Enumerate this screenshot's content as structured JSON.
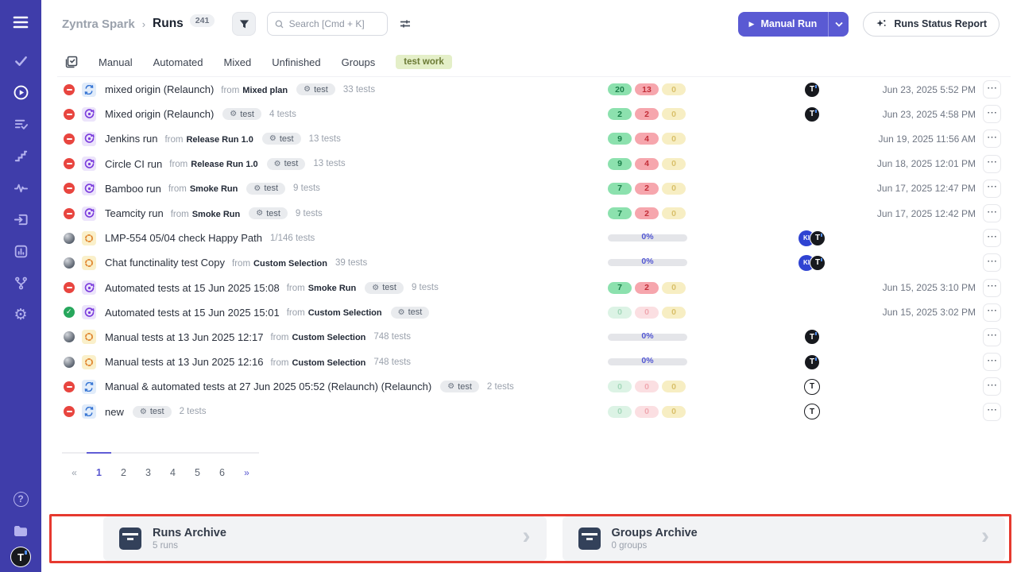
{
  "colors": {
    "sidebar_bg": "#3f3daa",
    "accent": "#5a5ad3",
    "passed_pill": "#8ce1ae",
    "failed_pill": "#f6a6ad",
    "pending_pill": "#f7eec3",
    "tag_bg": "#e4efc8",
    "annotation_red": "#e6392f"
  },
  "sidebar": {
    "top_icons": [
      "menu-icon",
      "check-icon",
      "play-circle-icon",
      "list-check-icon",
      "steps-icon",
      "pulse-icon",
      "box-arrow-icon",
      "bar-chart-icon",
      "branch-icon",
      "gear-icon"
    ],
    "active_icon": "play-circle-icon",
    "bottom_icons": [
      "help-icon",
      "folder-icon"
    ],
    "logo_letter": "T"
  },
  "header": {
    "breadcrumb_parent": "Zyntra Spark",
    "breadcrumb_sep": "›",
    "breadcrumb_current": "Runs",
    "count": "241",
    "search_placeholder": "Search [Cmd + K]",
    "manual_run_label": "Manual Run",
    "play_glyph": "▶",
    "report_label": "Runs Status Report"
  },
  "tabs": {
    "items": [
      "Manual",
      "Automated",
      "Mixed",
      "Unfinished",
      "Groups"
    ],
    "tag": "test work"
  },
  "strings": {
    "from": "from",
    "test_badge": "test",
    "gear": "⚙",
    "dots": "⋯"
  },
  "runs": [
    {
      "state": "stopped",
      "type": "mixed",
      "title": "mixed origin (Relaunch)",
      "source": "Mixed plan",
      "badge": "test",
      "tests": "33 tests",
      "stats": {
        "passed": "20",
        "failed": "13",
        "skipped": "0",
        "solid": true
      },
      "avatars": [
        {
          "label": "T",
          "style": "dark"
        }
      ],
      "date": "Jun 23, 2025 5:52 PM"
    },
    {
      "state": "stopped",
      "type": "auto",
      "title": "Mixed origin (Relaunch)",
      "source": "",
      "badge": "test",
      "tests": "4 tests",
      "stats": {
        "passed": "2",
        "failed": "2",
        "skipped": "0",
        "solid": true
      },
      "avatars": [
        {
          "label": "T",
          "style": "dark"
        }
      ],
      "date": "Jun 23, 2025 4:58 PM"
    },
    {
      "state": "stopped",
      "type": "auto",
      "title": "Jenkins run",
      "source": "Release Run 1.0",
      "badge": "test",
      "tests": "13 tests",
      "stats": {
        "passed": "9",
        "failed": "4",
        "skipped": "0",
        "solid": true
      },
      "avatars": [],
      "date": "Jun 19, 2025 11:56 AM"
    },
    {
      "state": "stopped",
      "type": "auto",
      "title": "Circle CI run",
      "source": "Release Run 1.0",
      "badge": "test",
      "tests": "13 tests",
      "stats": {
        "passed": "9",
        "failed": "4",
        "skipped": "0",
        "solid": true
      },
      "avatars": [],
      "date": "Jun 18, 2025 12:01 PM"
    },
    {
      "state": "stopped",
      "type": "auto",
      "title": "Bamboo run",
      "source": "Smoke Run",
      "badge": "test",
      "tests": "9 tests",
      "stats": {
        "passed": "7",
        "failed": "2",
        "skipped": "0",
        "solid": true
      },
      "avatars": [],
      "date": "Jun 17, 2025 12:47 PM"
    },
    {
      "state": "stopped",
      "type": "auto",
      "title": "Teamcity run",
      "source": "Smoke Run",
      "badge": "test",
      "tests": "9 tests",
      "stats": {
        "passed": "7",
        "failed": "2",
        "skipped": "0",
        "solid": true
      },
      "avatars": [],
      "date": "Jun 17, 2025 12:42 PM"
    },
    {
      "state": "progress",
      "type": "running",
      "title": "LMP-554 05/04 check Happy Path",
      "source": "",
      "badge": "",
      "tests": "1/146 tests",
      "stats": {
        "progress": "0%"
      },
      "avatars": [
        {
          "label": "KI",
          "style": "blue"
        },
        {
          "label": "T",
          "style": "dark"
        }
      ],
      "date": ""
    },
    {
      "state": "progress",
      "type": "running",
      "title": "Chat functinality test Copy",
      "source": "Custom Selection",
      "badge": "",
      "tests": "39 tests",
      "stats": {
        "progress": "0%"
      },
      "avatars": [
        {
          "label": "KI",
          "style": "blue"
        },
        {
          "label": "T",
          "style": "dark"
        }
      ],
      "date": ""
    },
    {
      "state": "stopped",
      "type": "auto",
      "title": "Automated tests at 15 Jun 2025 15:08",
      "source": "Smoke Run",
      "badge": "test",
      "tests": "9 tests",
      "stats": {
        "passed": "7",
        "failed": "2",
        "skipped": "0",
        "solid": true
      },
      "avatars": [],
      "date": "Jun 15, 2025 3:10 PM"
    },
    {
      "state": "passed",
      "type": "auto",
      "title": "Automated tests at 15 Jun 2025 15:01",
      "source": "Custom Selection",
      "badge": "test",
      "tests": "",
      "stats": {
        "passed": "0",
        "failed": "0",
        "skipped": "0",
        "solid": false
      },
      "avatars": [],
      "date": "Jun 15, 2025 3:02 PM"
    },
    {
      "state": "progress",
      "type": "running",
      "title": "Manual tests at 13 Jun 2025 12:17",
      "source": "Custom Selection",
      "badge": "",
      "tests": "748 tests",
      "stats": {
        "progress": "0%"
      },
      "avatars": [
        {
          "label": "T",
          "style": "dark"
        }
      ],
      "date": ""
    },
    {
      "state": "progress",
      "type": "running",
      "title": "Manual tests at 13 Jun 2025 12:16",
      "source": "Custom Selection",
      "badge": "",
      "tests": "748 tests",
      "stats": {
        "progress": "0%"
      },
      "avatars": [
        {
          "label": "T",
          "style": "dark"
        }
      ],
      "date": ""
    },
    {
      "state": "stopped",
      "type": "mixed",
      "title": "Manual & automated tests at 27 Jun 2025 05:52 (Relaunch) (Relaunch)",
      "source": "",
      "badge": "test",
      "tests": "2 tests",
      "stats": {
        "passed": "0",
        "failed": "0",
        "skipped": "0",
        "solid": false
      },
      "avatars": [
        {
          "label": "T",
          "style": "light"
        }
      ],
      "date": ""
    },
    {
      "state": "stopped",
      "type": "mixed",
      "title": "new",
      "source": "",
      "badge": "test",
      "tests": "2 tests",
      "stats": {
        "passed": "0",
        "failed": "0",
        "skipped": "0",
        "solid": false
      },
      "avatars": [
        {
          "label": "T",
          "style": "light"
        }
      ],
      "date": ""
    }
  ],
  "pagination": {
    "prev": "«",
    "pages": [
      "1",
      "2",
      "3",
      "4",
      "5",
      "6"
    ],
    "active": "1",
    "next": "»"
  },
  "archives": [
    {
      "title": "Runs Archive",
      "subtitle": "5 runs",
      "chevron": "›"
    },
    {
      "title": "Groups Archive",
      "subtitle": "0 groups",
      "chevron": "›"
    }
  ]
}
